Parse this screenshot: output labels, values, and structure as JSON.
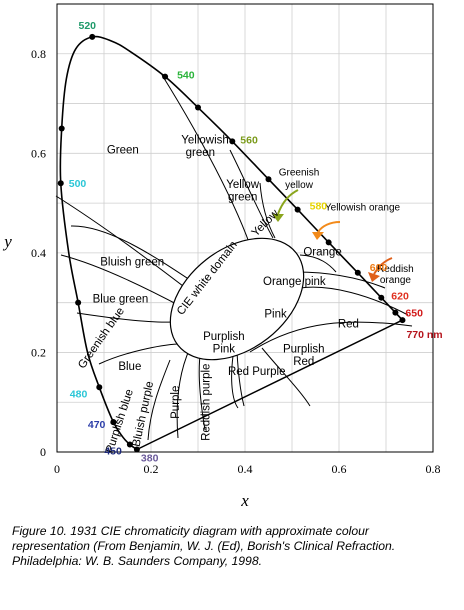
{
  "chart_data": {
    "type": "line",
    "xlabel": "x",
    "ylabel": "y",
    "xlim": [
      0,
      0.8
    ],
    "ylim": [
      0,
      0.9
    ],
    "grid": true,
    "x_ticks": [
      "0",
      "0.2",
      "0.4",
      "0.6",
      "0.8"
    ],
    "y_ticks": [
      "0",
      "0.2",
      "0.4",
      "0.6",
      "0.8"
    ],
    "locus_points": [
      [
        0.17,
        0.005
      ],
      [
        0.155,
        0.015
      ],
      [
        0.14,
        0.03
      ],
      [
        0.12,
        0.06
      ],
      [
        0.09,
        0.13
      ],
      [
        0.065,
        0.2
      ],
      [
        0.045,
        0.3
      ],
      [
        0.025,
        0.4
      ],
      [
        0.008,
        0.54
      ],
      [
        0.01,
        0.65
      ],
      [
        0.02,
        0.75
      ],
      [
        0.04,
        0.81
      ],
      [
        0.075,
        0.834
      ],
      [
        0.115,
        0.826
      ],
      [
        0.155,
        0.805
      ],
      [
        0.23,
        0.754
      ],
      [
        0.3,
        0.692
      ],
      [
        0.373,
        0.624
      ],
      [
        0.45,
        0.548
      ],
      [
        0.512,
        0.487
      ],
      [
        0.578,
        0.421
      ],
      [
        0.64,
        0.36
      ],
      [
        0.69,
        0.31
      ],
      [
        0.735,
        0.265
      ]
    ],
    "wavelength_labels": [
      {
        "label": "520",
        "x": 0.075,
        "y": 0.834,
        "color": "#1f9a6a"
      },
      {
        "label": "540",
        "x": 0.23,
        "y": 0.754,
        "color": "#29b339"
      },
      {
        "label": "560",
        "x": 0.373,
        "y": 0.624,
        "color": "#7a9a1a"
      },
      {
        "label": "580",
        "x": 0.512,
        "y": 0.487,
        "color": "#e6d400"
      },
      {
        "label": "600",
        "x": 0.64,
        "y": 0.36,
        "color": "#ee7a12"
      },
      {
        "label": "620",
        "x": 0.69,
        "y": 0.31,
        "color": "#e0301f"
      },
      {
        "label": "650",
        "x": 0.72,
        "y": 0.28,
        "color": "#d21a1a"
      },
      {
        "label": "770 nm",
        "x": 0.735,
        "y": 0.265,
        "color": "#b5141c"
      },
      {
        "label": "500",
        "x": 0.008,
        "y": 0.54,
        "color": "#2bc6d6"
      },
      {
        "label": "480",
        "x": 0.09,
        "y": 0.13,
        "color": "#2bc6d6"
      },
      {
        "label": "470",
        "x": 0.12,
        "y": 0.06,
        "color": "#2b3da8"
      },
      {
        "label": "450",
        "x": 0.155,
        "y": 0.015,
        "color": "#1e2a7a"
      },
      {
        "label": "380",
        "x": 0.17,
        "y": 0.005,
        "color": "#6a5a9a"
      }
    ],
    "regions": [
      {
        "label": "Green",
        "x": 0.14,
        "y": 0.6
      },
      {
        "label": "Yellowish",
        "x": 0.315,
        "y": 0.62
      },
      {
        "label": "green",
        "x": 0.305,
        "y": 0.595
      },
      {
        "label": "Yellow",
        "x": 0.395,
        "y": 0.53
      },
      {
        "label": "green",
        "x": 0.395,
        "y": 0.505
      },
      {
        "label": "Bluish green",
        "x": 0.16,
        "y": 0.375
      },
      {
        "label": "Blue green",
        "x": 0.135,
        "y": 0.3
      },
      {
        "label": "Blue",
        "x": 0.155,
        "y": 0.165
      },
      {
        "label": "Orange",
        "x": 0.565,
        "y": 0.395
      },
      {
        "label": "Orange pink",
        "x": 0.505,
        "y": 0.335
      },
      {
        "label": "Pink",
        "x": 0.465,
        "y": 0.27
      },
      {
        "label": "Red",
        "x": 0.62,
        "y": 0.25
      },
      {
        "label": "Purplish",
        "x": 0.355,
        "y": 0.225
      },
      {
        "label": "Pink",
        "x": 0.355,
        "y": 0.2
      },
      {
        "label": "Purplish",
        "x": 0.525,
        "y": 0.2
      },
      {
        "label": "Red",
        "x": 0.525,
        "y": 0.175
      },
      {
        "label": "Red Purple",
        "x": 0.425,
        "y": 0.155
      }
    ],
    "rotated_labels": [
      {
        "label": "CIE white domain",
        "x": 0.325,
        "y": 0.345,
        "angle": -52
      },
      {
        "label": "Yellow",
        "x": 0.448,
        "y": 0.455,
        "angle": -45
      },
      {
        "label": "Greenish blue",
        "x": 0.1,
        "y": 0.225,
        "angle": -55
      },
      {
        "label": "Purplish blue",
        "x": 0.14,
        "y": 0.06,
        "angle": -72
      },
      {
        "label": "Bluish purple",
        "x": 0.19,
        "y": 0.075,
        "angle": -78
      },
      {
        "label": "Purple",
        "x": 0.26,
        "y": 0.1,
        "angle": -90
      },
      {
        "label": "Reddish purple",
        "x": 0.325,
        "y": 0.1,
        "angle": -90
      }
    ],
    "annotations": [
      {
        "label": "Greenish",
        "x": 0.515,
        "y": 0.555
      },
      {
        "label": "yellow",
        "x": 0.515,
        "y": 0.53
      },
      {
        "label": "Yellowish orange",
        "x": 0.65,
        "y": 0.485
      },
      {
        "label": "Reddish",
        "x": 0.72,
        "y": 0.362
      },
      {
        "label": "orange",
        "x": 0.72,
        "y": 0.34
      }
    ]
  },
  "caption": {
    "line1": "Figure 10. 1931 CIE chromaticity diagram with approximate colour",
    "line2": "representation (From Benjamin, W. J. (Ed), Borish's Clinical Refraction.",
    "line3": "Philadelphia: W. B. Saunders Company, 1998."
  }
}
